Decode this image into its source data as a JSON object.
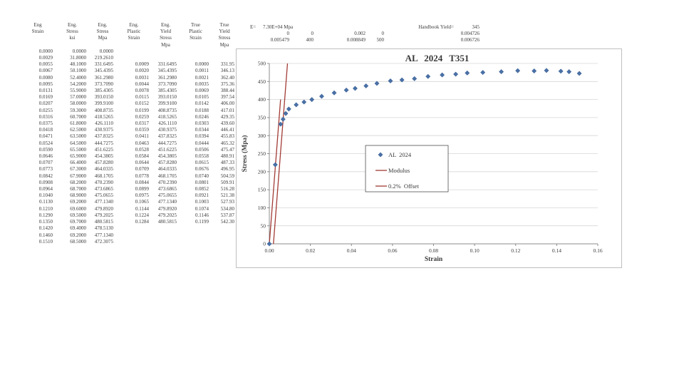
{
  "sheet": {
    "table": {
      "header_rows": [
        [
          "Eng",
          "Eng.",
          "Eng.",
          "Eng.",
          "Eng.",
          "True",
          "True"
        ],
        [
          "Strain",
          "Stress",
          "Stress",
          "Plastic",
          "Yield",
          "Plastic",
          "Yield"
        ],
        [
          "",
          "ksi",
          "Mpa",
          "Strain",
          "Stress",
          "Strain",
          "Stress"
        ],
        [
          "",
          "",
          "",
          "",
          "Mpa",
          "",
          "Mpa"
        ]
      ],
      "rows": [
        [
          "0.0000",
          "0.0000",
          "0.0000",
          "",
          "",
          "",
          ""
        ],
        [
          "0.0029",
          "31.8000",
          "219.2610",
          "",
          "",
          "",
          ""
        ],
        [
          "0.0055",
          "48.1000",
          "331.6495",
          "0.0009",
          "331.6495",
          "0.0000",
          "331.95"
        ],
        [
          "0.0067",
          "50.1000",
          "345.4395",
          "0.0020",
          "345.4395",
          "0.0011",
          "346.13"
        ],
        [
          "0.0080",
          "52.4000",
          "361.2980",
          "0.0031",
          "361.2980",
          "0.0021",
          "362.40"
        ],
        [
          "0.0095",
          "54.2000",
          "373.7090",
          "0.0044",
          "373.7090",
          "0.0035",
          "375.36"
        ],
        [
          "0.0131",
          "55.9000",
          "385.4305",
          "0.0078",
          "385.4305",
          "0.0069",
          "388.44"
        ],
        [
          "0.0169",
          "57.0000",
          "393.0150",
          "0.0115",
          "393.0150",
          "0.0105",
          "397.54"
        ],
        [
          "0.0207",
          "58.0000",
          "399.9100",
          "0.0152",
          "399.9100",
          "0.0142",
          "406.00"
        ],
        [
          "0.0255",
          "59.3000",
          "408.8735",
          "0.0199",
          "408.8735",
          "0.0188",
          "417.01"
        ],
        [
          "0.0316",
          "60.7000",
          "418.5265",
          "0.0259",
          "418.5265",
          "0.0246",
          "429.35"
        ],
        [
          "0.0375",
          "61.8000",
          "426.1110",
          "0.0317",
          "426.1110",
          "0.0303",
          "439.60"
        ],
        [
          "0.0418",
          "62.5000",
          "430.9375",
          "0.0359",
          "430.9375",
          "0.0344",
          "446.41"
        ],
        [
          "0.0471",
          "63.5000",
          "437.8325",
          "0.0411",
          "437.8325",
          "0.0394",
          "455.83"
        ],
        [
          "0.0524",
          "64.5000",
          "444.7275",
          "0.0463",
          "444.7275",
          "0.0444",
          "465.32"
        ],
        [
          "0.0590",
          "65.5000",
          "451.6225",
          "0.0528",
          "451.6225",
          "0.0506",
          "475.47"
        ],
        [
          "0.0646",
          "65.9000",
          "454.3805",
          "0.0584",
          "454.3805",
          "0.0558",
          "480.91"
        ],
        [
          "0.0707",
          "66.4000",
          "457.8280",
          "0.0644",
          "457.8280",
          "0.0615",
          "487.33"
        ],
        [
          "0.0773",
          "67.3000",
          "464.0335",
          "0.0709",
          "464.0335",
          "0.0676",
          "496.95"
        ],
        [
          "0.0842",
          "67.9000",
          "468.1705",
          "0.0778",
          "468.1705",
          "0.0740",
          "504.59"
        ],
        [
          "0.0908",
          "68.2000",
          "470.2390",
          "0.0844",
          "470.2390",
          "0.0801",
          "509.91"
        ],
        [
          "0.0964",
          "68.7000",
          "473.6865",
          "0.0899",
          "473.6865",
          "0.0852",
          "516.28"
        ],
        [
          "0.1040",
          "68.9000",
          "475.0655",
          "0.0975",
          "475.0655",
          "0.0921",
          "521.38"
        ],
        [
          "0.1130",
          "69.2000",
          "477.1340",
          "0.1065",
          "477.1340",
          "0.1003",
          "527.93"
        ],
        [
          "0.1210",
          "69.6000",
          "479.8920",
          "0.1144",
          "479.8920",
          "0.1074",
          "534.80"
        ],
        [
          "0.1290",
          "69.5000",
          "479.2025",
          "0.1224",
          "479.2025",
          "0.1146",
          "537.87"
        ],
        [
          "0.1350",
          "69.7000",
          "480.5815",
          "0.1284",
          "480.5815",
          "0.1199",
          "542.30"
        ],
        [
          "0.1420",
          "69.4000",
          "478.5130",
          "",
          "",
          "",
          ""
        ],
        [
          "0.1460",
          "69.2000",
          "477.1340",
          "",
          "",
          "",
          ""
        ],
        [
          "0.1510",
          "68.5000",
          "472.3075",
          "",
          "",
          "",
          ""
        ]
      ]
    },
    "constants": {
      "e_label": "E=",
      "e_value": "7.30E+04 Mpa",
      "handbook_label": "Handbook Yield=",
      "handbook_value": "345",
      "rows": [
        [
          "0",
          "0",
          "0.002",
          "0",
          "0.004726"
        ],
        [
          "0.005479",
          "400",
          "0.008849",
          "500",
          "0.006726"
        ]
      ]
    }
  },
  "chart_data": {
    "type": "scatter",
    "title": "AL 2024 T351",
    "xlabel": "Strain",
    "ylabel": "Stress (Mpa)",
    "xlim": [
      0,
      0.16
    ],
    "xtick_step": 0.02,
    "ylim": [
      0,
      500
    ],
    "ytick_step": 50,
    "grid": "horizontal",
    "legend_position": "center",
    "colors": {
      "marker_fill": "#4a72a8",
      "marker_edge": "#3d6195",
      "line_red": "#a23b35",
      "gridline": "#d6d6d6",
      "axis": "#8c8c8c"
    },
    "series": [
      {
        "name": "AL 2024",
        "kind": "scatter",
        "marker": "diamond",
        "x": [
          0.0,
          0.0029,
          0.0055,
          0.0067,
          0.008,
          0.0095,
          0.0131,
          0.0169,
          0.0207,
          0.0255,
          0.0316,
          0.0375,
          0.0418,
          0.0471,
          0.0524,
          0.059,
          0.0646,
          0.0707,
          0.0773,
          0.0842,
          0.0908,
          0.0964,
          0.104,
          0.113,
          0.121,
          0.129,
          0.135,
          0.142,
          0.146,
          0.151
        ],
        "y": [
          0,
          219.261,
          331.6495,
          345.4395,
          361.298,
          373.709,
          385.4305,
          393.015,
          399.91,
          408.8735,
          418.5265,
          426.111,
          430.9375,
          437.8325,
          444.7275,
          451.6225,
          454.3805,
          457.828,
          464.0335,
          468.1705,
          470.239,
          473.6865,
          475.0655,
          477.134,
          479.892,
          479.2025,
          480.5815,
          478.513,
          477.134,
          472.3075
        ]
      },
      {
        "name": "Modulus",
        "kind": "line",
        "x": [
          0,
          0.005479
        ],
        "y": [
          0,
          400
        ]
      },
      {
        "name": "0.2% Offset",
        "kind": "line",
        "x": [
          0.002,
          0.008849
        ],
        "y": [
          0,
          500
        ]
      }
    ]
  }
}
